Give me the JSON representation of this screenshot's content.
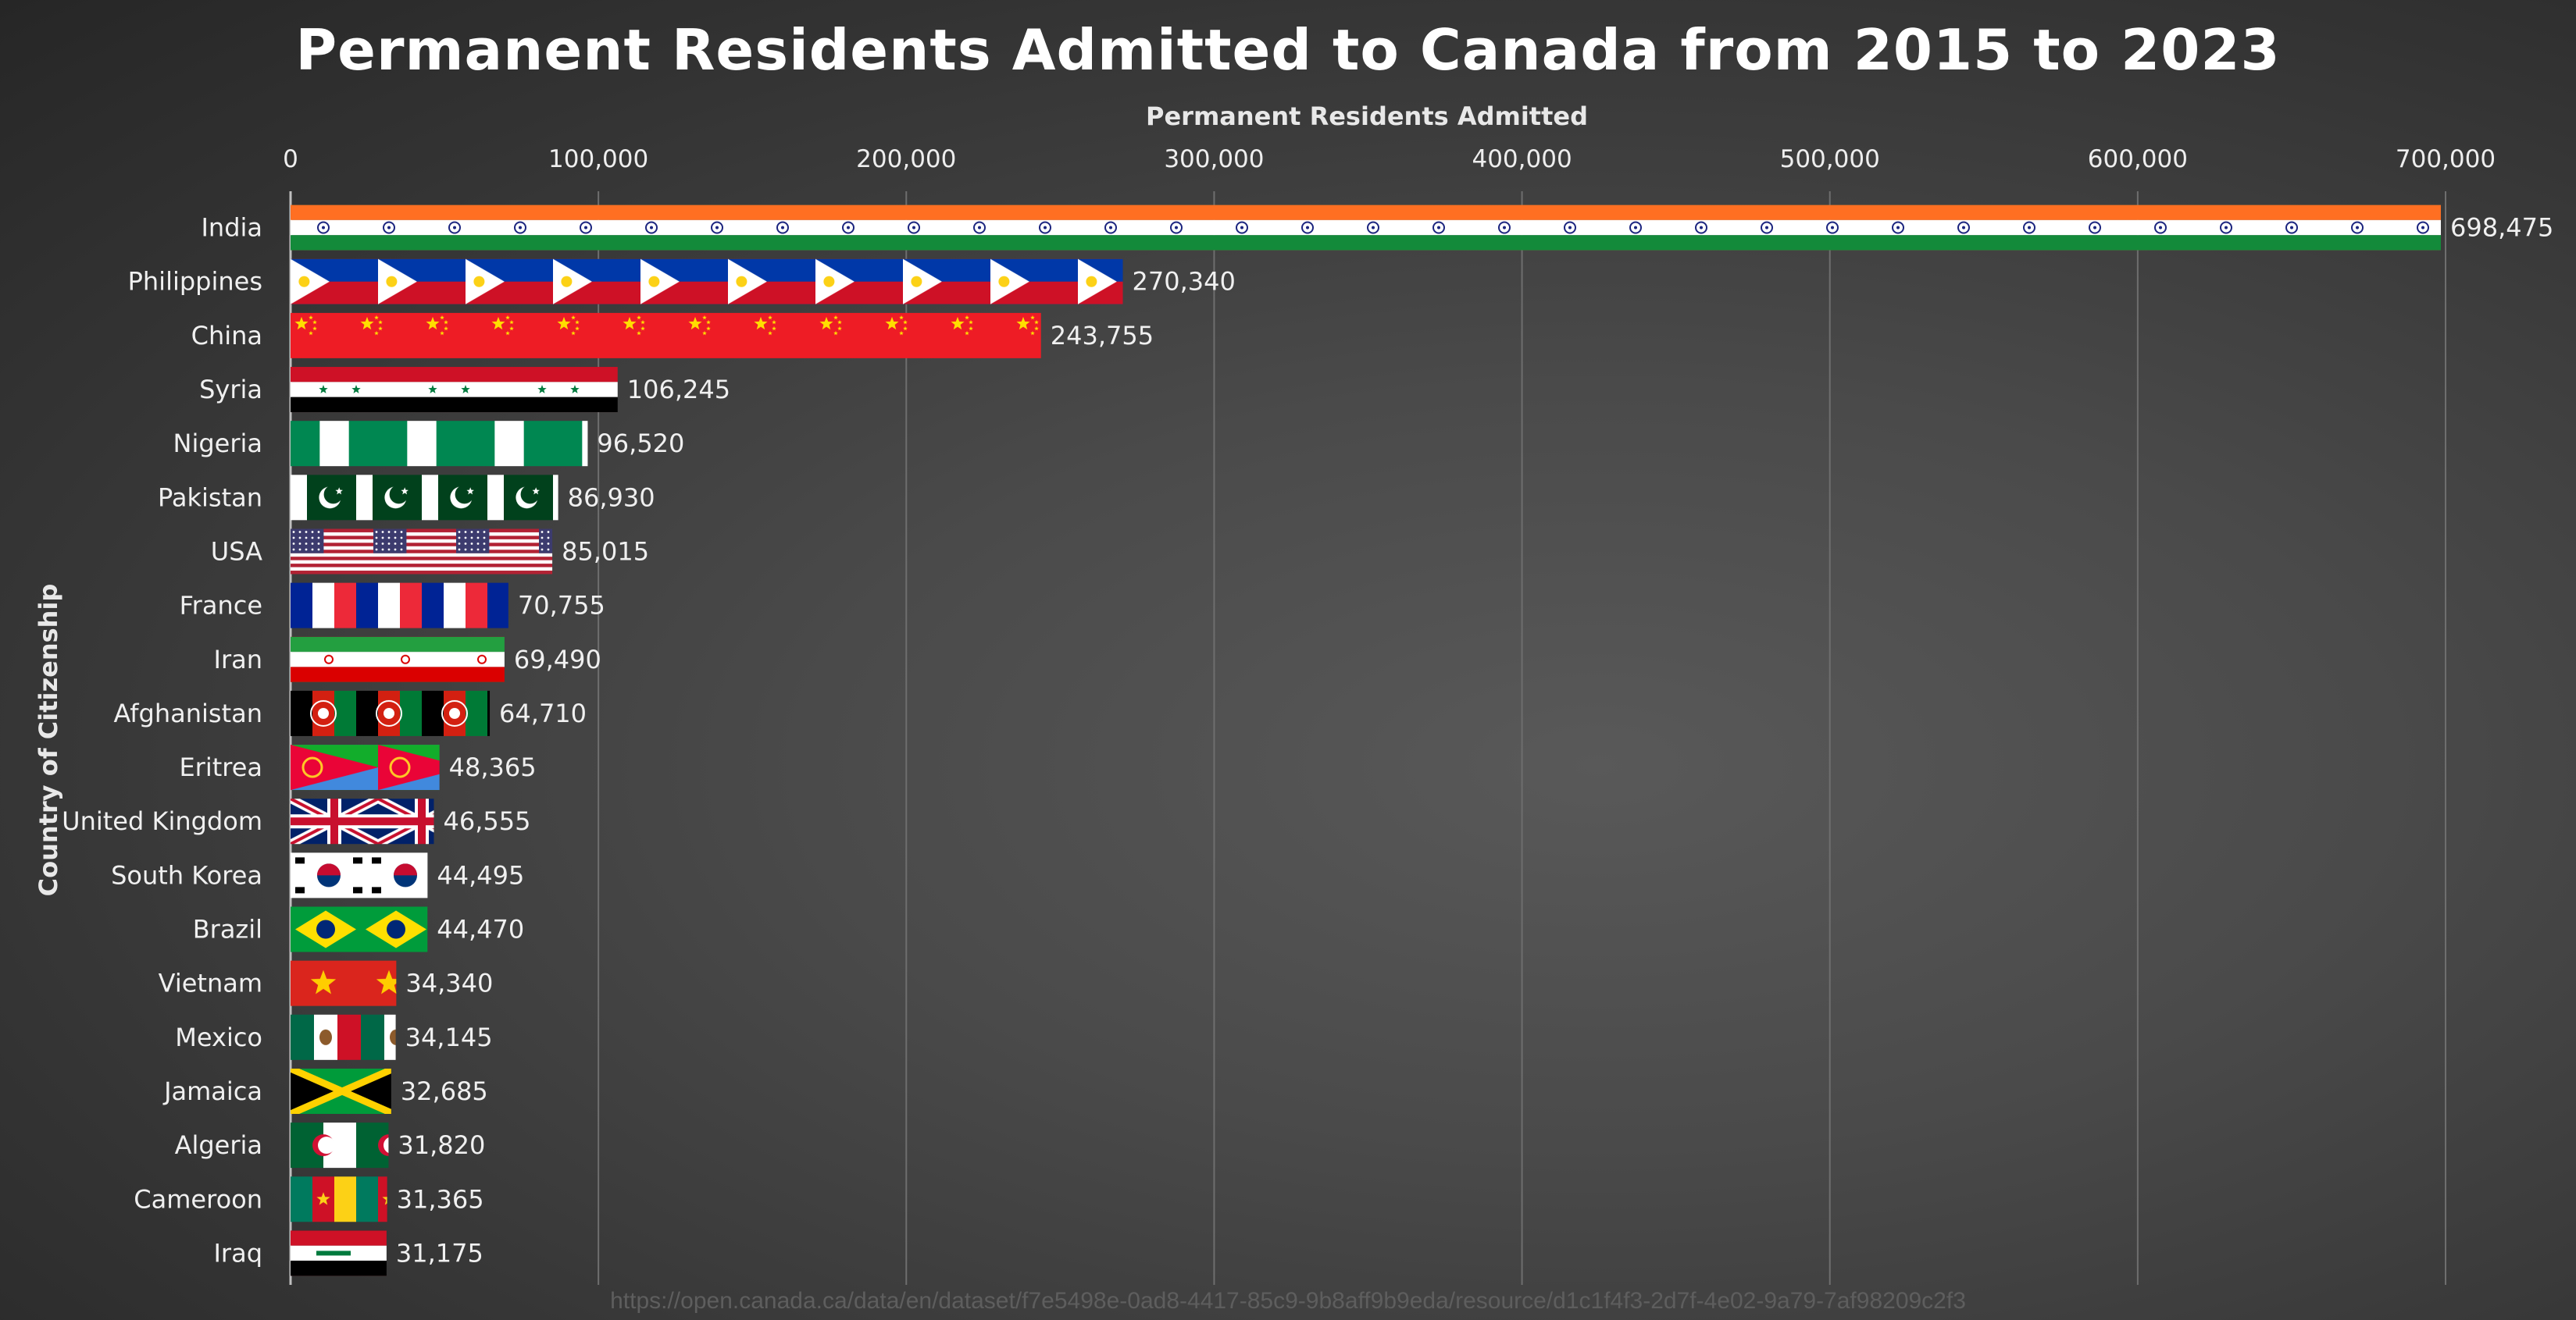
{
  "chart_data": {
    "type": "bar",
    "orientation": "horizontal",
    "title": "Permanent Residents Admitted to Canada from 2015 to 2023",
    "xlabel": "Permanent Residents Admitted",
    "ylabel": "Country of Citizenship",
    "xlim": [
      0,
      700000
    ],
    "x_ticks": [
      "0",
      "100,000",
      "200,000",
      "300,000",
      "400,000",
      "500,000",
      "600,000",
      "700,000"
    ],
    "x_axis_position": "top",
    "grid": true,
    "categories": [
      "India",
      "Philippines",
      "China",
      "Syria",
      "Nigeria",
      "Pakistan",
      "USA",
      "France",
      "Iran",
      "Afghanistan",
      "Eritrea",
      "United Kingdom",
      "South Korea",
      "Brazil",
      "Vietnam",
      "Mexico",
      "Jamaica",
      "Algeria",
      "Cameroon",
      "Iraq"
    ],
    "values": [
      698475,
      270340,
      243755,
      106245,
      96520,
      86930,
      85015,
      70755,
      69490,
      64710,
      48365,
      46555,
      44495,
      44470,
      34340,
      34145,
      32685,
      31820,
      31365,
      31175
    ],
    "value_labels": [
      "698,475",
      "270,340",
      "243,755",
      "106,245",
      "96,520",
      "86,930",
      "85,015",
      "70,755",
      "69,490",
      "64,710",
      "48,365",
      "46,555",
      "44,495",
      "44,470",
      "34,340",
      "34,145",
      "32,685",
      "31,820",
      "31,365",
      "31,175"
    ],
    "bar_fill": "flag of each country"
  },
  "source": "https://open.canada.ca/data/en/dataset/f7e5498e-0ad8-4417-85c9-9b8aff9b9eda/resource/d1c1f4f3-2d7f-4e02-9a79-7af98209c2f3",
  "colors": {
    "background": "#3d3d3d",
    "text": "#f2f2f2",
    "gridline": "#6e6e6e"
  }
}
